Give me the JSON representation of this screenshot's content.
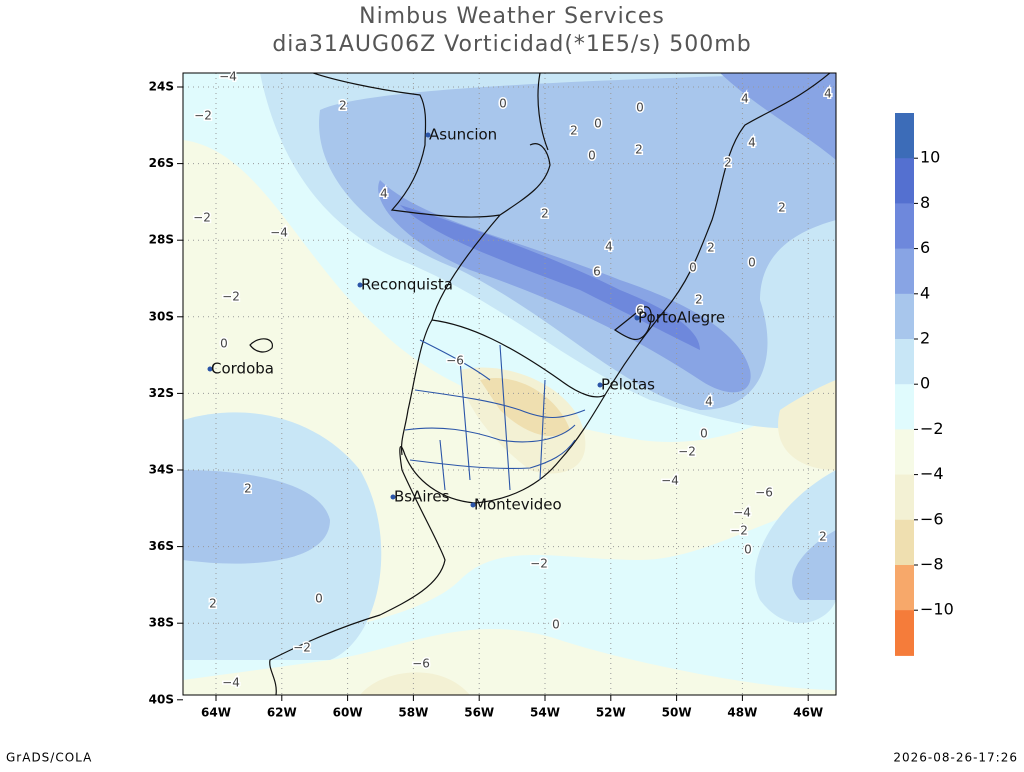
{
  "header": {
    "title": "Nimbus Weather Services",
    "subtitle": "dia31AUG06Z Vorticidad(*1E5/s) 500mb"
  },
  "map": {
    "lat_labels": [
      "24S",
      "26S",
      "28S",
      "30S",
      "32S",
      "34S",
      "36S",
      "38S",
      "40S"
    ],
    "lon_labels": [
      "64W",
      "62W",
      "60W",
      "58W",
      "56W",
      "54W",
      "52W",
      "50W",
      "48W",
      "46W"
    ],
    "cities": [
      "Asuncion",
      "Reconquista",
      "Cordoba",
      "PortoAlegre",
      "Pelotas",
      "BsAires",
      "Montevideo"
    ],
    "contour_labels": [
      "2",
      "0",
      "2",
      "0",
      "0",
      "2",
      "0",
      "4",
      "4",
      "4",
      "2",
      "2",
      "2",
      "4",
      "−4",
      "−2",
      "−2",
      "0",
      "4",
      "6",
      "0",
      "0",
      "2",
      "2",
      "6",
      "−6",
      "4",
      "0",
      "−2",
      "−4",
      "−6",
      "−4",
      "−2",
      "0",
      "2",
      "2",
      "0",
      "2",
      "−2",
      "0",
      "−2",
      "−6",
      "−4",
      "−4",
      "−2"
    ]
  },
  "colorbar": {
    "labels": [
      "10",
      "8",
      "6",
      "4",
      "2",
      "0",
      "−2",
      "−4",
      "−6",
      "−8",
      "−10"
    ],
    "colors": [
      "#3c6cb8",
      "#5470d0",
      "#6e88dc",
      "#88a4e4",
      "#a8c6ec",
      "#c8e6f6",
      "#e0fbfd",
      "#f6fae6",
      "#f3f1d4",
      "#efdfb0",
      "#f7a86a",
      "#f57c3a"
    ]
  },
  "footer": {
    "left": "GrADS/COLA",
    "right": "2026-08-26-17:26"
  }
}
